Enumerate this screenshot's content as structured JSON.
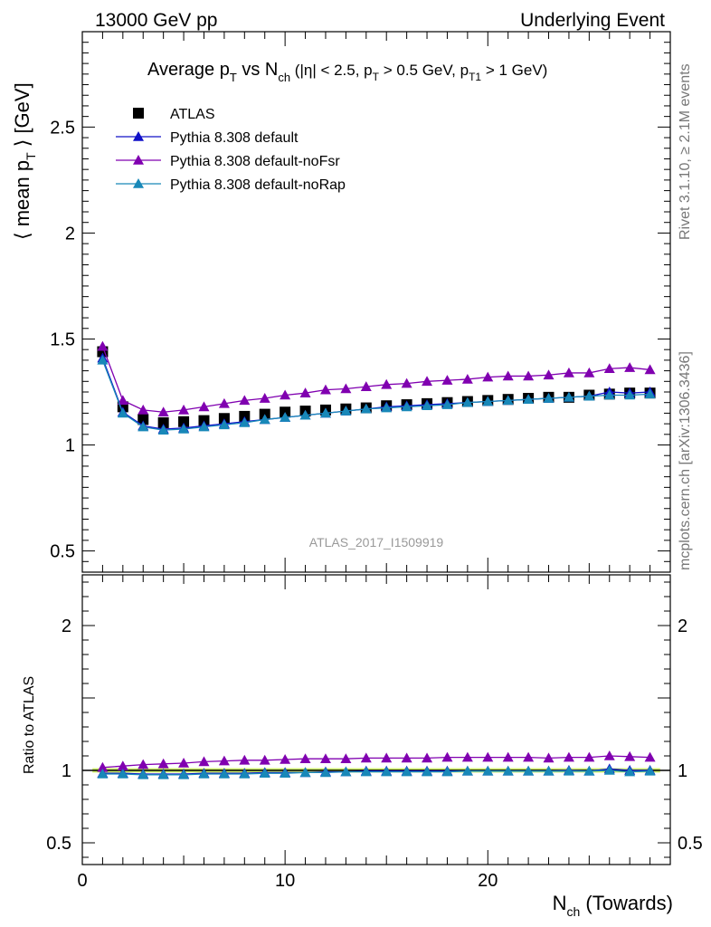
{
  "header": {
    "left": "13000 GeV pp",
    "right": "Underlying Event"
  },
  "side_labels": {
    "rivet": "Rivet 3.1.10, ≥ 2.1M events",
    "mcplots": "mcplots.cern.ch [arXiv:1306.3436]"
  },
  "watermark": "ATLAS_2017_I1509919",
  "chart_data": [
    {
      "type": "scatter",
      "title": "Average pT vs Nch (|η| < 2.5, pT > 0.5 GeV, pT1 > 1 GeV)",
      "ylabel": "⟨ mean pT ⟩ [GeV]",
      "xlim": [
        0,
        29
      ],
      "ylim": [
        0.4,
        2.95
      ],
      "yticks": [
        0.5,
        1,
        1.5,
        2,
        2.5
      ],
      "x": [
        1,
        2,
        3,
        4,
        5,
        6,
        7,
        8,
        9,
        10,
        11,
        12,
        13,
        14,
        15,
        16,
        17,
        18,
        19,
        20,
        21,
        22,
        23,
        24,
        25,
        26,
        27,
        28
      ],
      "series": [
        {
          "name": "ATLAS",
          "color": "#000000",
          "marker": "square",
          "values": [
            1.44,
            1.18,
            1.12,
            1.105,
            1.11,
            1.115,
            1.125,
            1.135,
            1.145,
            1.155,
            1.16,
            1.165,
            1.17,
            1.175,
            1.185,
            1.19,
            1.195,
            1.2,
            1.205,
            1.21,
            1.215,
            1.22,
            1.225,
            1.225,
            1.235,
            1.24,
            1.245,
            1.245
          ]
        },
        {
          "name": "Pythia 8.308 default",
          "color": "#1010c8",
          "marker": "triangle",
          "values": [
            1.41,
            1.155,
            1.09,
            1.075,
            1.08,
            1.09,
            1.1,
            1.11,
            1.12,
            1.13,
            1.14,
            1.15,
            1.16,
            1.17,
            1.18,
            1.185,
            1.19,
            1.195,
            1.2,
            1.205,
            1.21,
            1.215,
            1.22,
            1.225,
            1.23,
            1.25,
            1.245,
            1.25
          ]
        },
        {
          "name": "Pythia 8.308 default-noFsr",
          "color": "#8000b0",
          "marker": "triangle",
          "values": [
            1.465,
            1.21,
            1.165,
            1.155,
            1.165,
            1.18,
            1.195,
            1.21,
            1.22,
            1.235,
            1.245,
            1.26,
            1.265,
            1.275,
            1.285,
            1.29,
            1.3,
            1.305,
            1.31,
            1.32,
            1.325,
            1.325,
            1.33,
            1.34,
            1.34,
            1.36,
            1.365,
            1.355
          ]
        },
        {
          "name": "Pythia 8.308 default-noRap",
          "color": "#1888b8",
          "marker": "triangle",
          "values": [
            1.4,
            1.15,
            1.085,
            1.07,
            1.075,
            1.085,
            1.095,
            1.105,
            1.12,
            1.13,
            1.14,
            1.15,
            1.16,
            1.17,
            1.175,
            1.18,
            1.185,
            1.19,
            1.2,
            1.205,
            1.21,
            1.215,
            1.22,
            1.225,
            1.23,
            1.235,
            1.235,
            1.24
          ]
        }
      ]
    },
    {
      "type": "scatter",
      "xlabel": "Nch (Towards)",
      "ylabel": "Ratio to ATLAS",
      "xlim": [
        0,
        29
      ],
      "ylim": [
        0.35,
        2.35
      ],
      "xticks": [
        0,
        10,
        20
      ],
      "yticks": [
        0.5,
        1,
        2
      ],
      "band_color": "#ccee66",
      "x": [
        1,
        2,
        3,
        4,
        5,
        6,
        7,
        8,
        9,
        10,
        11,
        12,
        13,
        14,
        15,
        16,
        17,
        18,
        19,
        20,
        21,
        22,
        23,
        24,
        25,
        26,
        27,
        28
      ],
      "series": [
        {
          "name": "Pythia 8.308 default",
          "color": "#1010c8",
          "marker": "triangle",
          "values": [
            0.98,
            0.98,
            0.975,
            0.975,
            0.975,
            0.98,
            0.98,
            0.98,
            0.985,
            0.985,
            0.985,
            0.99,
            0.99,
            0.995,
            0.995,
            0.995,
            0.995,
            0.995,
            0.995,
            0.995,
            0.995,
            0.995,
            0.995,
            1.0,
            0.995,
            1.01,
            1.0,
            1.0
          ]
        },
        {
          "name": "Pythia 8.308 default-noFsr",
          "color": "#8000b0",
          "marker": "triangle",
          "values": [
            1.02,
            1.03,
            1.04,
            1.045,
            1.05,
            1.06,
            1.065,
            1.07,
            1.07,
            1.075,
            1.08,
            1.08,
            1.08,
            1.085,
            1.085,
            1.085,
            1.085,
            1.09,
            1.09,
            1.09,
            1.09,
            1.09,
            1.085,
            1.09,
            1.09,
            1.1,
            1.095,
            1.09
          ]
        },
        {
          "name": "Pythia 8.308 default-noRap",
          "color": "#1888b8",
          "marker": "triangle",
          "values": [
            0.975,
            0.975,
            0.97,
            0.97,
            0.97,
            0.975,
            0.975,
            0.975,
            0.98,
            0.98,
            0.985,
            0.985,
            0.99,
            0.99,
            0.99,
            0.99,
            0.99,
            0.99,
            0.995,
            0.995,
            0.995,
            0.995,
            0.995,
            0.995,
            0.995,
            1.0,
            0.99,
            0.995
          ]
        }
      ]
    }
  ]
}
